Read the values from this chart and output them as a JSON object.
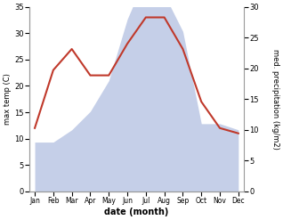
{
  "months": [
    "Jan",
    "Feb",
    "Mar",
    "Apr",
    "May",
    "Jun",
    "Jul",
    "Aug",
    "Sep",
    "Oct",
    "Nov",
    "Dec"
  ],
  "temp": [
    12,
    23,
    27,
    22,
    22,
    28,
    33,
    33,
    27,
    17,
    12,
    11
  ],
  "precip": [
    8,
    8,
    10,
    13,
    18,
    28,
    35,
    32,
    26,
    11,
    11,
    10
  ],
  "temp_color": "#c0392b",
  "precip_color": "#c5cfe8",
  "left_ylim": [
    0,
    35
  ],
  "right_ylim": [
    0,
    30
  ],
  "left_yticks": [
    0,
    5,
    10,
    15,
    20,
    25,
    30,
    35
  ],
  "right_yticks": [
    0,
    5,
    10,
    15,
    20,
    25,
    30
  ],
  "ylabel_left": "max temp (C)",
  "ylabel_right": "med. precipitation (kg/m2)",
  "xlabel": "date (month)",
  "temp_linewidth": 1.5,
  "figsize": [
    3.18,
    2.47
  ],
  "dpi": 100
}
